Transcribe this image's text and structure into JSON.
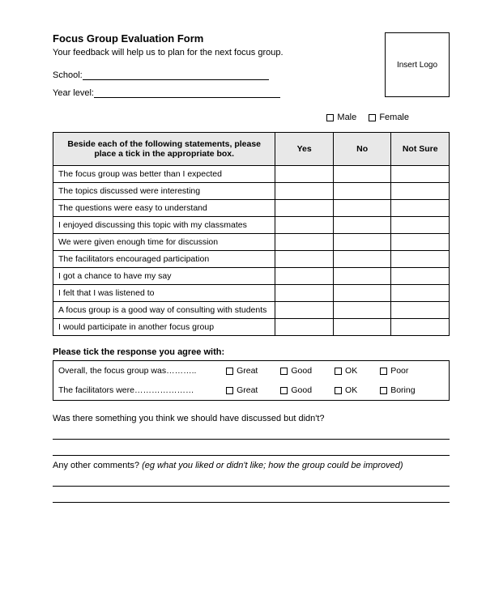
{
  "header": {
    "title": "Focus Group Evaluation Form",
    "subtitle": "Your feedback will help us to plan for the next focus group.",
    "logo_placeholder": "Insert Logo",
    "school_label": "School:",
    "year_label": "Year level:"
  },
  "gender": {
    "male": "Male",
    "female": "Female"
  },
  "eval_table": {
    "instruction": "Beside each of the following statements, please place a tick in the appropriate box.",
    "col_yes": "Yes",
    "col_no": "No",
    "col_notsure": "Not Sure",
    "rows": [
      "The focus group was better than I expected",
      "The topics discussed were interesting",
      "The questions were easy to understand",
      "I enjoyed discussing this topic with my classmates",
      "We were given enough time for discussion",
      "The facilitators encouraged participation",
      "I got a chance to have my say",
      "I felt that I was listened to",
      "A focus group is a good way of consulting with students",
      "I would participate in another focus group"
    ]
  },
  "rating_section": {
    "heading": "Please tick the response you agree with:",
    "row1_label": "Overall, the focus group was………..",
    "row2_label": "The facilitators were…………………",
    "opts_row1": [
      "Great",
      "Good",
      "OK",
      "Poor"
    ],
    "opts_row2": [
      "Great",
      "Good",
      "OK",
      "Boring"
    ]
  },
  "open_questions": {
    "q1": "Was there something you think we should have discussed but didn't?",
    "q2_prefix": "Any other comments? ",
    "q2_hint": "(eg what you liked or didn't like; how the group could be improved)"
  },
  "style": {
    "header_bg": "#e8e8e8",
    "border_color": "#000000",
    "text_color": "#000000",
    "page_bg": "#ffffff"
  }
}
